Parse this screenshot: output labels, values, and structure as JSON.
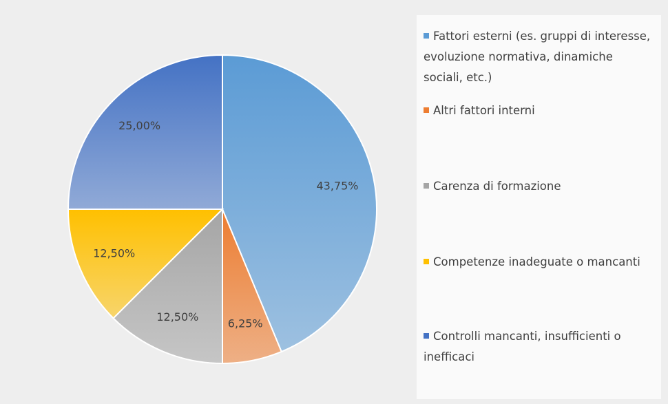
{
  "chart_data": {
    "type": "pie",
    "categories": [
      "Fattori esterni  (es. gruppi di interesse, evoluzione normativa, dinamiche sociali, etc.)",
      "Altri fattori interni",
      "Carenza di formazione",
      "Competenze inadeguate o mancanti",
      "Controlli mancanti, insufficienti o inefficaci"
    ],
    "values": [
      43.75,
      6.25,
      12.5,
      12.5,
      25
    ],
    "value_labels": [
      "43,75%",
      "6,25%",
      "12,50%",
      "12,50%",
      "25,00%"
    ],
    "colors": [
      "#5b9bd5",
      "#ed7d31",
      "#a5a5a5",
      "#ffc000",
      "#4472c4"
    ],
    "legend": "right"
  }
}
